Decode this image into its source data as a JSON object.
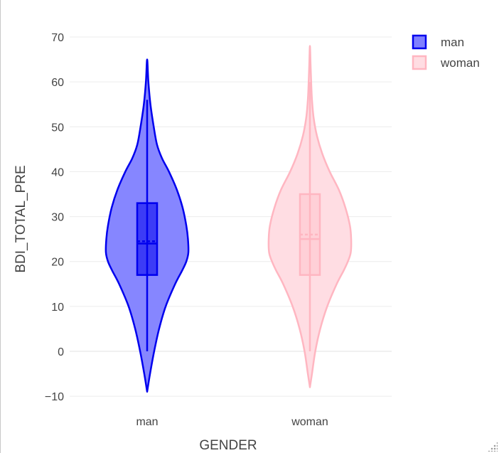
{
  "chart_data": {
    "type": "violin",
    "xlabel": "GENDER",
    "ylabel": "BDI_TOTAL_PRE",
    "categories": [
      "man",
      "woman"
    ],
    "ylim": [
      -12,
      72
    ],
    "yticks": [
      -10,
      0,
      10,
      20,
      30,
      40,
      50,
      60,
      70
    ],
    "ytick_labels": [
      "−10",
      "0",
      "10",
      "20",
      "30",
      "40",
      "50",
      "60",
      "70"
    ],
    "grid": true,
    "legend_position": "top-right",
    "series": [
      {
        "name": "man",
        "color": "#0000ee",
        "fill": "#8080ff",
        "violin_range": [
          -9,
          65
        ],
        "box": {
          "q1": 17,
          "median": 24,
          "mean": 24.5,
          "q3": 33,
          "whisker_low": 0,
          "whisker_high": 56
        },
        "density": [
          [
            -9,
            0.0
          ],
          [
            -5,
            0.07
          ],
          [
            0,
            0.17
          ],
          [
            5,
            0.29
          ],
          [
            10,
            0.45
          ],
          [
            15,
            0.68
          ],
          [
            18,
            0.85
          ],
          [
            20,
            0.95
          ],
          [
            22,
            1.0
          ],
          [
            25,
            0.99
          ],
          [
            28,
            0.95
          ],
          [
            32,
            0.86
          ],
          [
            36,
            0.72
          ],
          [
            40,
            0.53
          ],
          [
            43,
            0.36
          ],
          [
            46,
            0.24
          ],
          [
            50,
            0.16
          ],
          [
            55,
            0.08
          ],
          [
            60,
            0.03
          ],
          [
            65,
            0.0
          ]
        ]
      },
      {
        "name": "woman",
        "color": "#ffb6c1",
        "fill": "#ffdde3",
        "violin_range": [
          -8,
          68
        ],
        "box": {
          "q1": 17,
          "median": 25,
          "mean": 26,
          "q3": 35,
          "whisker_low": 0,
          "whisker_high": 60
        },
        "density": [
          [
            -8,
            0.0
          ],
          [
            -5,
            0.05
          ],
          [
            0,
            0.13
          ],
          [
            5,
            0.25
          ],
          [
            10,
            0.42
          ],
          [
            15,
            0.65
          ],
          [
            18,
            0.82
          ],
          [
            20,
            0.92
          ],
          [
            22,
            0.99
          ],
          [
            25,
            1.0
          ],
          [
            28,
            0.97
          ],
          [
            32,
            0.86
          ],
          [
            36,
            0.7
          ],
          [
            40,
            0.48
          ],
          [
            44,
            0.3
          ],
          [
            48,
            0.17
          ],
          [
            52,
            0.09
          ],
          [
            56,
            0.05
          ],
          [
            60,
            0.03
          ],
          [
            64,
            0.015
          ],
          [
            68,
            0.0
          ]
        ]
      }
    ]
  }
}
